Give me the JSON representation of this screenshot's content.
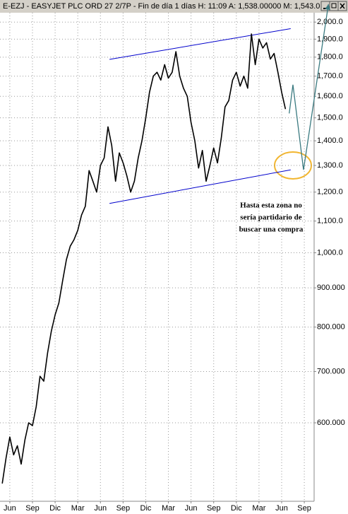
{
  "chart_data": {
    "type": "line",
    "title": "E-EZJ - EASYJET PLC ORD 27 2/7P - Fin de día 1 días H: 11:09 A: 1,538.00000 M: 1,543.0",
    "log_scale": true,
    "grid": true,
    "color": "#000000",
    "xlim": [
      -1.3,
      40.3
    ],
    "ylim": [
      474,
      2057
    ],
    "xticks": [
      {
        "value": 0,
        "label": "Jun"
      },
      {
        "value": 3,
        "label": "Sep"
      },
      {
        "value": 6,
        "label": "Dic"
      },
      {
        "value": 9,
        "label": "Mar"
      },
      {
        "value": 12,
        "label": "Jun"
      },
      {
        "value": 15,
        "label": "Sep"
      },
      {
        "value": 18,
        "label": "Dic"
      },
      {
        "value": 21,
        "label": "Mar"
      },
      {
        "value": 24,
        "label": "Jun"
      },
      {
        "value": 27,
        "label": "Sep"
      },
      {
        "value": 30,
        "label": "Dic"
      },
      {
        "value": 33,
        "label": "Mar"
      },
      {
        "value": 36,
        "label": "Jun"
      },
      {
        "value": 39,
        "label": "Sep"
      }
    ],
    "yticks": [
      {
        "value": 2000,
        "label": "2,000.0"
      },
      {
        "value": 1900,
        "label": "1,900.0"
      },
      {
        "value": 1800,
        "label": "1,800.0"
      },
      {
        "value": 1700,
        "label": "1,700.0"
      },
      {
        "value": 1600,
        "label": "1,600.0"
      },
      {
        "value": 1500,
        "label": "1,500.0"
      },
      {
        "value": 1400,
        "label": "1,400.0"
      },
      {
        "value": 1300,
        "label": "1,300.0"
      },
      {
        "value": 1200,
        "label": "1,200.0"
      },
      {
        "value": 1100,
        "label": "1,100.0"
      },
      {
        "value": 1000,
        "label": "1,000.0"
      },
      {
        "value": 900,
        "label": "900.000"
      },
      {
        "value": 800,
        "label": "800.000"
      },
      {
        "value": 700,
        "label": "700.000"
      },
      {
        "value": 600,
        "label": "600.000"
      }
    ],
    "x": [
      -1,
      -0.5,
      0,
      0.5,
      1,
      1.5,
      2,
      2.5,
      3,
      3.5,
      4,
      4.5,
      5,
      5.5,
      6,
      6.5,
      7,
      7.5,
      8,
      8.5,
      9,
      9.5,
      10,
      10.5,
      11,
      11.5,
      12,
      12.5,
      13,
      13.5,
      14,
      14.5,
      15,
      15.5,
      16,
      16.5,
      17,
      17.5,
      18,
      18.5,
      19,
      19.5,
      20,
      20.5,
      21,
      21.5,
      22,
      22.5,
      23,
      23.5,
      24,
      24.5,
      25,
      25.5,
      26,
      26.5,
      27,
      27.5,
      28,
      28.5,
      29,
      29.5,
      30,
      30.5,
      31,
      31.5,
      32,
      32.5,
      33,
      33.5,
      34,
      34.5,
      35,
      35.5,
      36,
      36.5
    ],
    "values": [
      500,
      540,
      575,
      545,
      560,
      530,
      570,
      600,
      595,
      630,
      690,
      680,
      740,
      790,
      830,
      860,
      920,
      980,
      1020,
      1040,
      1070,
      1120,
      1150,
      1280,
      1240,
      1200,
      1300,
      1330,
      1460,
      1380,
      1240,
      1350,
      1310,
      1260,
      1200,
      1240,
      1330,
      1400,
      1500,
      1620,
      1700,
      1720,
      1680,
      1760,
      1690,
      1720,
      1830,
      1700,
      1640,
      1600,
      1480,
      1400,
      1290,
      1360,
      1240,
      1300,
      1370,
      1310,
      1410,
      1550,
      1580,
      1680,
      1720,
      1650,
      1700,
      1640,
      1930,
      1760,
      1900,
      1850,
      1880,
      1790,
      1820,
      1720,
      1620,
      1540
    ],
    "trendlines": [
      {
        "color": "#0000cc",
        "x": [
          13.2,
          37.2
        ],
        "values": [
          1788,
          1961
        ]
      },
      {
        "color": "#0000cc",
        "x": [
          13.2,
          37.2
        ],
        "values": [
          1160,
          1283
        ]
      }
    ],
    "projection": {
      "color": "#3a7a80",
      "x": [
        37.0,
        37.5,
        38.9,
        42.2
      ],
      "values": [
        1520,
        1657,
        1283,
        2111
      ]
    },
    "annotation": [
      "Hasta esta zona no",
      "sería partidario de",
      "buscar una compra"
    ]
  }
}
